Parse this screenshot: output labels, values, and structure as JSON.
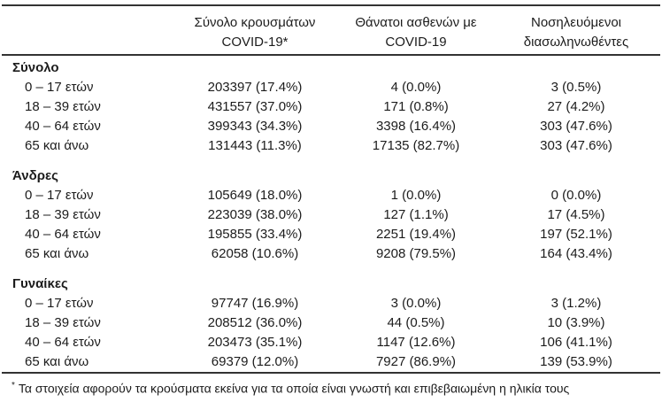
{
  "table": {
    "columns": [
      {
        "line1": "",
        "line2": ""
      },
      {
        "line1": "Σύνολο κρουσμάτων",
        "line2": "COVID-19*"
      },
      {
        "line1": "Θάνατοι ασθενών με",
        "line2": "COVID-19"
      },
      {
        "line1": "Νοσηλευόμενοι",
        "line2": "διασωληνωθέντες"
      }
    ],
    "sections": [
      {
        "label": "Σύνολο",
        "rows": [
          {
            "label": "0 – 17 ετών",
            "cases": "203397 (17.4%)",
            "deaths": "4 (0.0%)",
            "intubated": "3 (0.5%)"
          },
          {
            "label": "18 – 39 ετών",
            "cases": "431557 (37.0%)",
            "deaths": "171 (0.8%)",
            "intubated": "27 (4.2%)"
          },
          {
            "label": "40 – 64 ετών",
            "cases": "399343 (34.3%)",
            "deaths": "3398 (16.4%)",
            "intubated": "303 (47.6%)"
          },
          {
            "label": "65 και άνω",
            "cases": "131443 (11.3%)",
            "deaths": "17135 (82.7%)",
            "intubated": "303 (47.6%)"
          }
        ]
      },
      {
        "label": "Άνδρες",
        "rows": [
          {
            "label": "0 – 17 ετών",
            "cases": "105649 (18.0%)",
            "deaths": "1 (0.0%)",
            "intubated": "0 (0.0%)"
          },
          {
            "label": "18 – 39 ετών",
            "cases": "223039 (38.0%)",
            "deaths": "127 (1.1%)",
            "intubated": "17 (4.5%)"
          },
          {
            "label": "40 – 64 ετών",
            "cases": "195855 (33.4%)",
            "deaths": "2251 (19.4%)",
            "intubated": "197 (52.1%)"
          },
          {
            "label": "65 και άνω",
            "cases": "62058 (10.6%)",
            "deaths": "9208 (79.5%)",
            "intubated": "164 (43.4%)"
          }
        ]
      },
      {
        "label": "Γυναίκες",
        "rows": [
          {
            "label": "0 – 17 ετών",
            "cases": "97747 (16.9%)",
            "deaths": "3 (0.0%)",
            "intubated": "3 (1.2%)"
          },
          {
            "label": "18 – 39 ετών",
            "cases": "208512 (36.0%)",
            "deaths": "44 (0.5%)",
            "intubated": "10 (3.9%)"
          },
          {
            "label": "40 – 64 ετών",
            "cases": "203473 (35.1%)",
            "deaths": "1147 (12.6%)",
            "intubated": "106 (41.1%)"
          },
          {
            "label": "65 και άνω",
            "cases": "69379 (12.0%)",
            "deaths": "7927 (86.9%)",
            "intubated": "139 (53.9%)"
          }
        ]
      }
    ],
    "footnote_marker": "*",
    "footnote_text": "Τα στοιχεία αφορούν τα κρούσματα εκείνα για τα οποία είναι γνωστή και επιβεβαιωμένη η ηλικία τους"
  },
  "colors": {
    "text": "#1c1c1c",
    "rule": "#333333",
    "background": "#ffffff"
  }
}
